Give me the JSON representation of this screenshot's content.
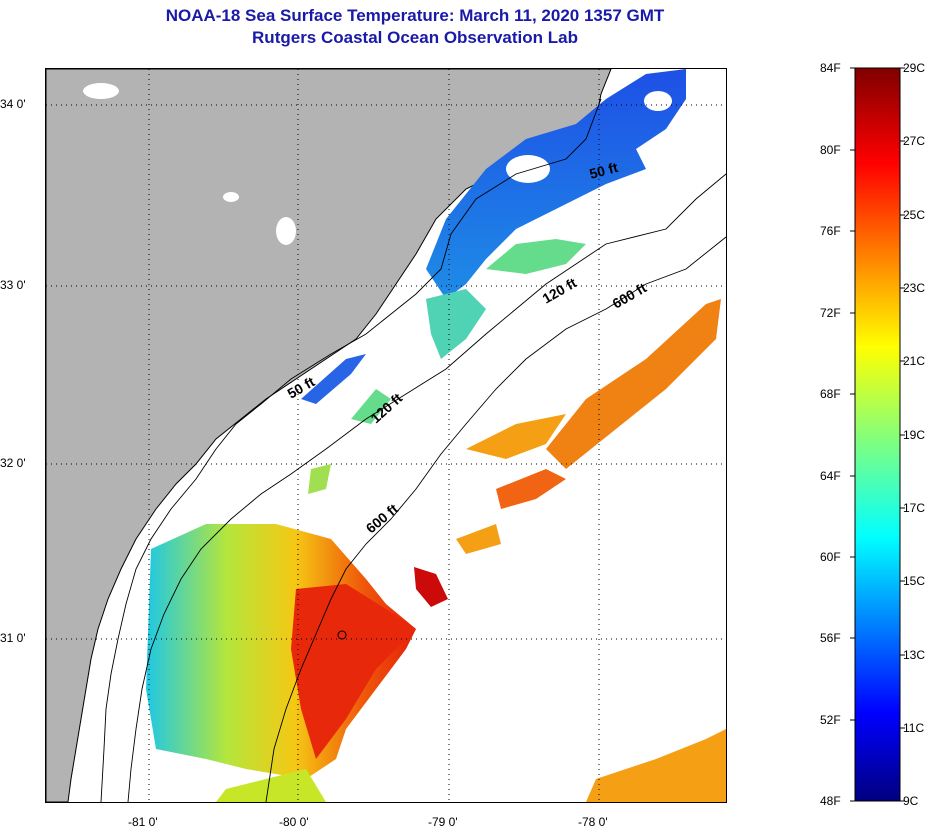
{
  "title": {
    "line1": "NOAA-18 Sea Surface Temperature:  March 11, 2020 1357 GMT",
    "line2": "Rutgers Coastal Ocean Observation Lab"
  },
  "map": {
    "lat_labels": [
      "34 0'",
      "33 0'",
      "32 0'",
      "31 0'"
    ],
    "lon_labels": [
      "-81 0'",
      "-80 0'",
      "-79 0'",
      "-78 0'"
    ],
    "contour_labels": [
      "50 ft",
      "50 ft",
      "120 ft",
      "120 ft",
      "600 ft",
      "600 ft"
    ],
    "colors": {
      "land": "#b3b3b3",
      "water_nodata": "#ffffff"
    }
  },
  "colorbar": {
    "fahrenheit_labels": [
      "84F",
      "80F",
      "76F",
      "72F",
      "68F",
      "64F",
      "60F",
      "56F",
      "52F",
      "48F"
    ],
    "celsius_labels": [
      "29C",
      "27C",
      "25C",
      "23C",
      "21C",
      "19C",
      "17C",
      "15C",
      "13C",
      "11C",
      "9C"
    ]
  }
}
